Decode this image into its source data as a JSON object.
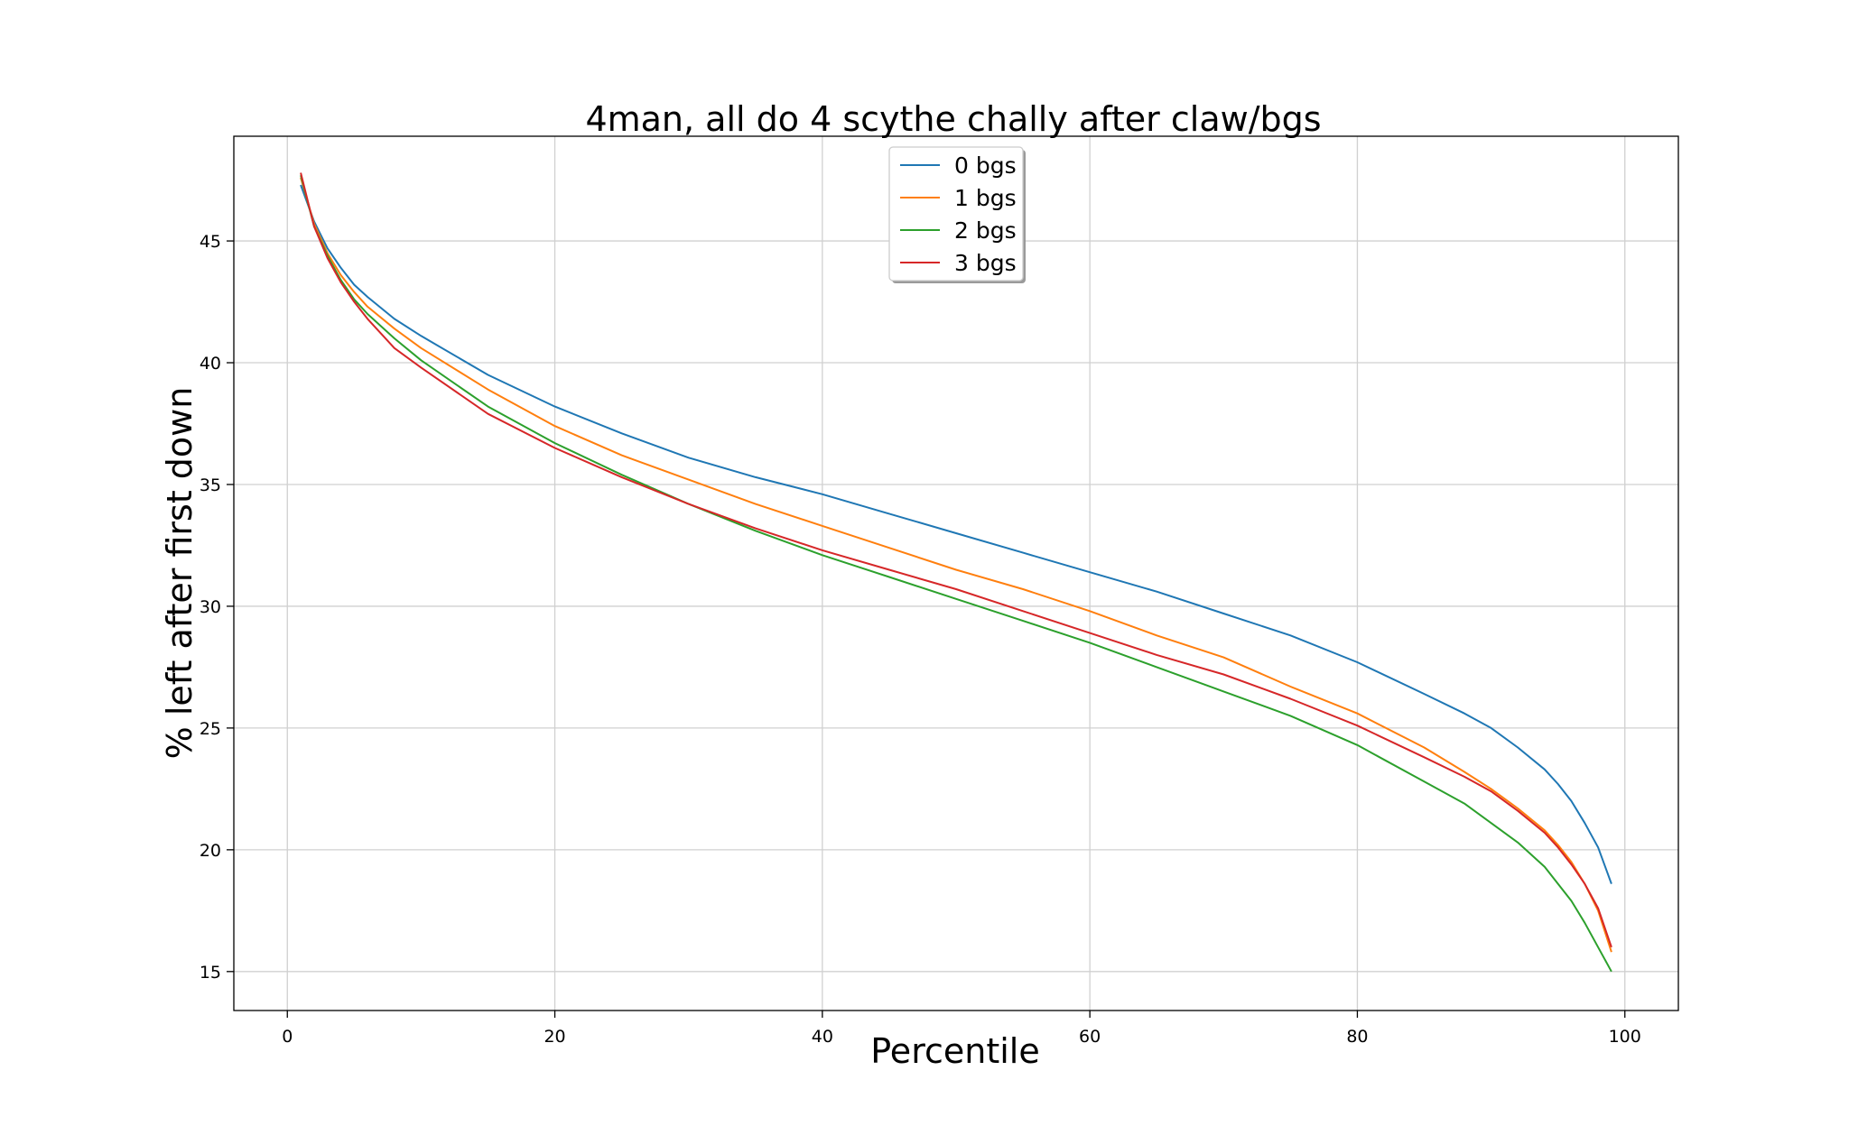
{
  "chart_data": {
    "type": "line",
    "title": "4man, all do 4 scythe chally after claw/bgs",
    "xlabel": "Percentile",
    "ylabel": "% left after first down",
    "xlim": [
      -4,
      104
    ],
    "ylim": [
      13.4,
      49.3
    ],
    "xticks": [
      0,
      20,
      40,
      60,
      80,
      100
    ],
    "yticks": [
      15,
      20,
      25,
      30,
      35,
      40,
      45
    ],
    "grid": true,
    "legend_position": "top-center",
    "x": [
      1,
      2,
      3,
      4,
      5,
      6,
      8,
      10,
      15,
      20,
      25,
      30,
      35,
      40,
      45,
      50,
      55,
      60,
      65,
      70,
      75,
      80,
      85,
      88,
      90,
      92,
      94,
      95,
      96,
      97,
      98,
      99
    ],
    "series": [
      {
        "name": "0 bgs",
        "color": "#1f77b4",
        "values": [
          47.3,
          45.8,
          44.7,
          43.9,
          43.2,
          42.7,
          41.8,
          41.1,
          39.5,
          38.2,
          37.1,
          36.1,
          35.3,
          34.6,
          33.8,
          33.0,
          32.2,
          31.4,
          30.6,
          29.7,
          28.8,
          27.7,
          26.4,
          25.6,
          25.0,
          24.2,
          23.3,
          22.7,
          22.0,
          21.1,
          20.1,
          18.6
        ]
      },
      {
        "name": "1 bgs",
        "color": "#ff7f0e",
        "values": [
          47.6,
          45.7,
          44.5,
          43.6,
          42.9,
          42.3,
          41.4,
          40.6,
          38.9,
          37.4,
          36.2,
          35.2,
          34.2,
          33.3,
          32.4,
          31.5,
          30.7,
          29.8,
          28.8,
          27.9,
          26.7,
          25.6,
          24.2,
          23.2,
          22.5,
          21.7,
          20.8,
          20.2,
          19.5,
          18.6,
          17.5,
          15.8
        ]
      },
      {
        "name": "2 bgs",
        "color": "#2ca02c",
        "values": [
          47.7,
          45.6,
          44.4,
          43.4,
          42.6,
          42.0,
          41.0,
          40.1,
          38.2,
          36.7,
          35.4,
          34.2,
          33.1,
          32.1,
          31.2,
          30.3,
          29.4,
          28.5,
          27.5,
          26.5,
          25.5,
          24.3,
          22.8,
          21.9,
          21.1,
          20.3,
          19.3,
          18.6,
          17.9,
          17.0,
          16.0,
          15.0
        ]
      },
      {
        "name": "3 bgs",
        "color": "#d62728",
        "values": [
          47.8,
          45.6,
          44.3,
          43.3,
          42.5,
          41.8,
          40.6,
          39.8,
          37.9,
          36.5,
          35.3,
          34.2,
          33.2,
          32.3,
          31.5,
          30.7,
          29.8,
          28.9,
          28.0,
          27.2,
          26.2,
          25.1,
          23.8,
          23.0,
          22.4,
          21.6,
          20.7,
          20.1,
          19.4,
          18.6,
          17.6,
          16.0
        ]
      }
    ]
  }
}
